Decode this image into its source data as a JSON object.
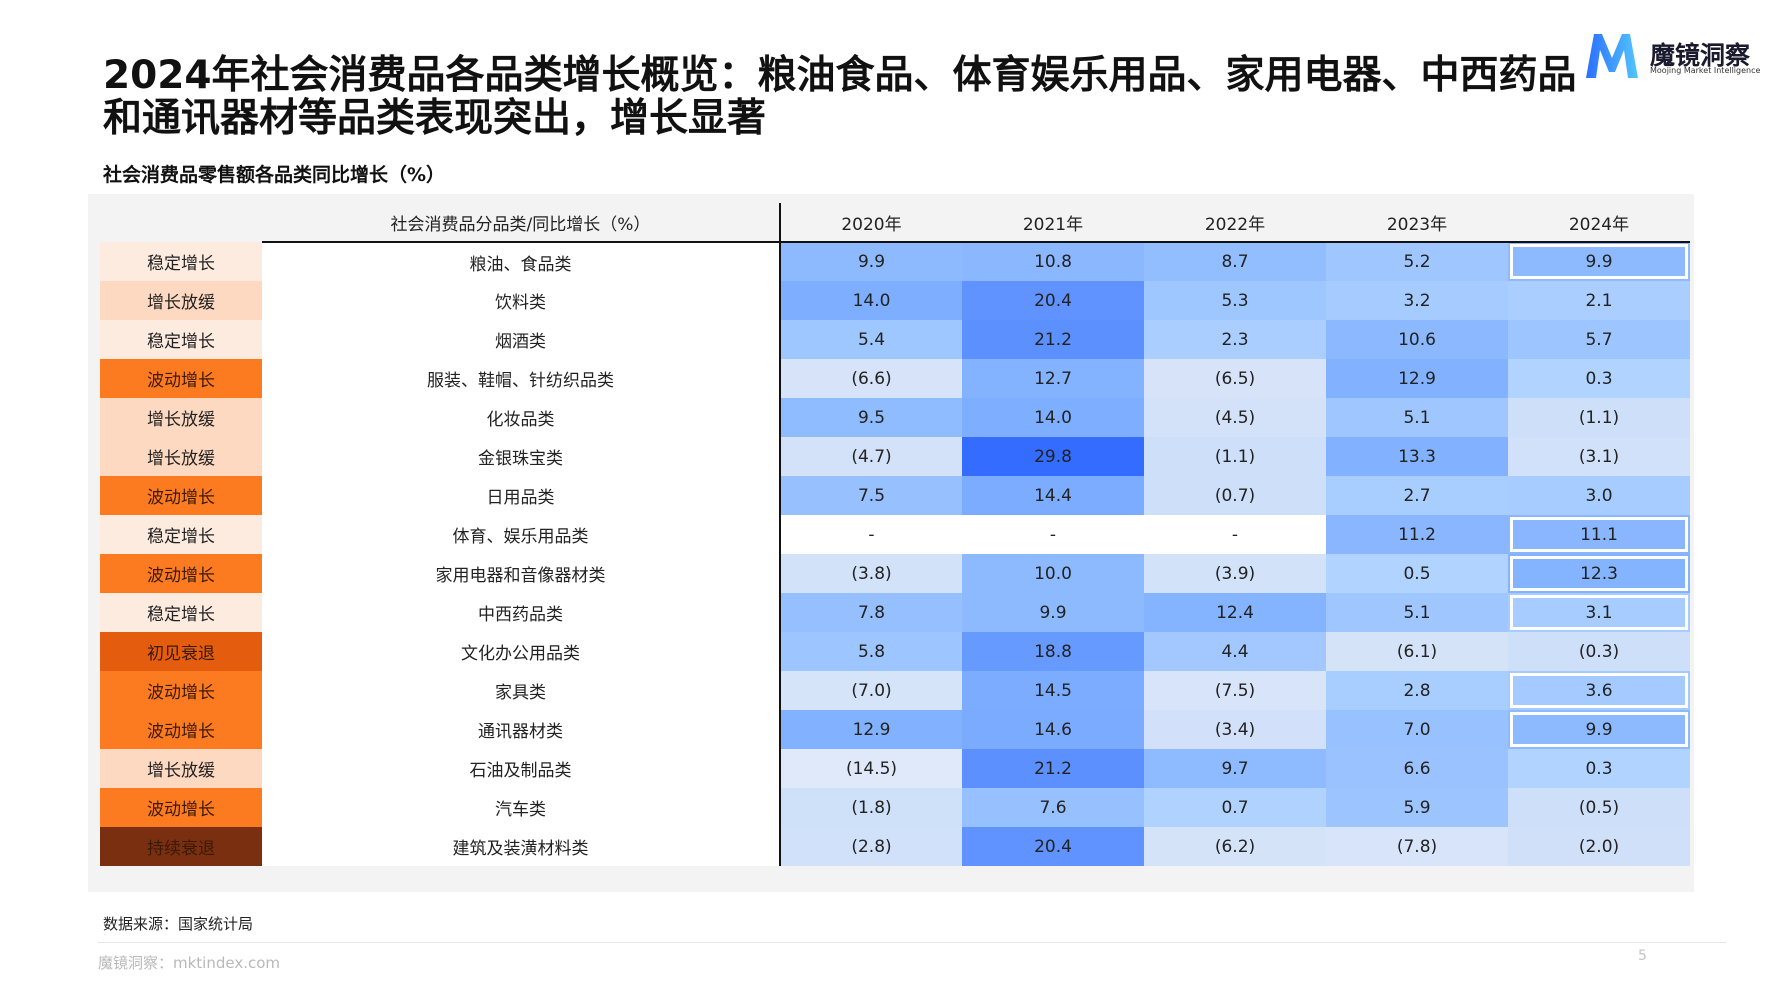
{
  "header": {
    "title": "2024年社会消费品各品类增长概览：粮油食品、体育娱乐用品、家用电器、中西药品和通讯器材等品类表现突出，增长显著",
    "subtitle": "社会消费品零售额各品类同比增长（%）"
  },
  "brand": {
    "name": "魔镜洞察",
    "tagline": "Moojing Market Intelligence",
    "logo_icon": "m-logo-icon",
    "logo_colors": [
      "#2b6fff",
      "#53c5ff"
    ]
  },
  "status_colors": {
    "稳定增长": "#fdebe0",
    "增长放缓": "#fdd9c1",
    "波动增长": "#fc7b21",
    "初见衰退": "#e45d0f",
    "持续衰退": "#7a3010"
  },
  "chart_data": {
    "type": "heatmap",
    "column_header": "社会消费品分品类/同比增长（%）",
    "years": [
      "2020年",
      "2021年",
      "2022年",
      "2023年",
      "2024年"
    ],
    "rows": [
      {
        "status": "稳定增长",
        "category": "粮油、食品类",
        "cells": [
          "9.9",
          "10.8",
          "8.7",
          "5.2",
          "9.9"
        ],
        "values": [
          9.9,
          10.8,
          8.7,
          5.2,
          9.9
        ],
        "highlight_2024": true
      },
      {
        "status": "增长放缓",
        "category": "饮料类",
        "cells": [
          "14.0",
          "20.4",
          "5.3",
          "3.2",
          "2.1"
        ],
        "values": [
          14.0,
          20.4,
          5.3,
          3.2,
          2.1
        ],
        "highlight_2024": false
      },
      {
        "status": "稳定增长",
        "category": "烟酒类",
        "cells": [
          "5.4",
          "21.2",
          "2.3",
          "10.6",
          "5.7"
        ],
        "values": [
          5.4,
          21.2,
          2.3,
          10.6,
          5.7
        ],
        "highlight_2024": false
      },
      {
        "status": "波动增长",
        "category": "服装、鞋帽、针纺织品类",
        "cells": [
          "(6.6)",
          "12.7",
          "(6.5)",
          "12.9",
          "0.3"
        ],
        "values": [
          -6.6,
          12.7,
          -6.5,
          12.9,
          0.3
        ],
        "highlight_2024": false
      },
      {
        "status": "增长放缓",
        "category": "化妆品类",
        "cells": [
          "9.5",
          "14.0",
          "(4.5)",
          "5.1",
          "(1.1)"
        ],
        "values": [
          9.5,
          14.0,
          -4.5,
          5.1,
          -1.1
        ],
        "highlight_2024": false
      },
      {
        "status": "增长放缓",
        "category": "金银珠宝类",
        "cells": [
          "(4.7)",
          "29.8",
          "(1.1)",
          "13.3",
          "(3.1)"
        ],
        "values": [
          -4.7,
          29.8,
          -1.1,
          13.3,
          -3.1
        ],
        "highlight_2024": false
      },
      {
        "status": "波动增长",
        "category": "日用品类",
        "cells": [
          "7.5",
          "14.4",
          "(0.7)",
          "2.7",
          "3.0"
        ],
        "values": [
          7.5,
          14.4,
          -0.7,
          2.7,
          3.0
        ],
        "highlight_2024": false
      },
      {
        "status": "稳定增长",
        "category": "体育、娱乐用品类",
        "cells": [
          "-",
          "-",
          "-",
          "11.2",
          "11.1"
        ],
        "values": [
          null,
          null,
          null,
          11.2,
          11.1
        ],
        "highlight_2024": true
      },
      {
        "status": "波动增长",
        "category": "家用电器和音像器材类",
        "cells": [
          "(3.8)",
          "10.0",
          "(3.9)",
          "0.5",
          "12.3"
        ],
        "values": [
          -3.8,
          10.0,
          -3.9,
          0.5,
          12.3
        ],
        "highlight_2024": true
      },
      {
        "status": "稳定增长",
        "category": "中西药品类",
        "cells": [
          "7.8",
          "9.9",
          "12.4",
          "5.1",
          "3.1"
        ],
        "values": [
          7.8,
          9.9,
          12.4,
          5.1,
          3.1
        ],
        "highlight_2024": true
      },
      {
        "status": "初见衰退",
        "category": "文化办公用品类",
        "cells": [
          "5.8",
          "18.8",
          "4.4",
          "(6.1)",
          "(0.3)"
        ],
        "values": [
          5.8,
          18.8,
          4.4,
          -6.1,
          -0.3
        ],
        "highlight_2024": false
      },
      {
        "status": "波动增长",
        "category": "家具类",
        "cells": [
          "(7.0)",
          "14.5",
          "(7.5)",
          "2.8",
          "3.6"
        ],
        "values": [
          -7.0,
          14.5,
          -7.5,
          2.8,
          3.6
        ],
        "highlight_2024": true
      },
      {
        "status": "波动增长",
        "category": "通讯器材类",
        "cells": [
          "12.9",
          "14.6",
          "(3.4)",
          "7.0",
          "9.9"
        ],
        "values": [
          12.9,
          14.6,
          -3.4,
          7.0,
          9.9
        ],
        "highlight_2024": true
      },
      {
        "status": "增长放缓",
        "category": "石油及制品类",
        "cells": [
          "(14.5)",
          "21.2",
          "9.7",
          "6.6",
          "0.3"
        ],
        "values": [
          -14.5,
          21.2,
          9.7,
          6.6,
          0.3
        ],
        "highlight_2024": false
      },
      {
        "status": "波动增长",
        "category": "汽车类",
        "cells": [
          "(1.8)",
          "7.6",
          "0.7",
          "5.9",
          "(0.5)"
        ],
        "values": [
          -1.8,
          7.6,
          0.7,
          5.9,
          -0.5
        ],
        "highlight_2024": false
      },
      {
        "status": "持续衰退",
        "category": "建筑及装潢材料类",
        "cells": [
          "(2.8)",
          "20.4",
          "(6.2)",
          "(7.8)",
          "(2.0)"
        ],
        "values": [
          -2.8,
          20.4,
          -6.2,
          -7.8,
          -2.0
        ],
        "highlight_2024": false
      }
    ]
  },
  "footer": {
    "source": "数据来源：国家统计局",
    "site": "魔镜洞察：mktindex.com",
    "page": "5"
  }
}
